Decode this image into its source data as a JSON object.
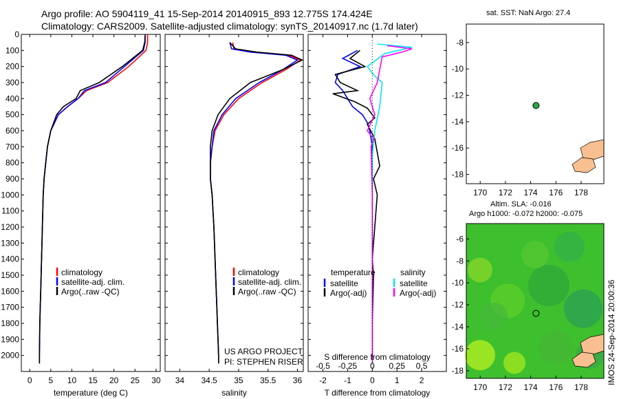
{
  "header": {
    "line1": "Argo profile: AO 5904119_41 15-Sep-2014 20140915_893 12.775S 174.424E",
    "line2": "Climatology: CARS2009. Satellite-adjusted climatology: synTS_20140917.nc (1.7d later)"
  },
  "credit": "IMOS 24-Sep-2014 20:00:36",
  "colors": {
    "climatology": "#ff0000",
    "satellite": "#0000ff",
    "argo": "#000000",
    "salinity_satellite": "#00e5ee",
    "salinity_argo": "#ff00ff",
    "land": "#f8c090",
    "ocean_sla": "#3fbf30"
  },
  "depth_axis": {
    "ylim": [
      2100,
      0
    ],
    "ticks": [
      0,
      100,
      200,
      300,
      400,
      500,
      600,
      700,
      800,
      900,
      1000,
      1100,
      1200,
      1300,
      1400,
      1500,
      1600,
      1700,
      1800,
      1900,
      2000
    ]
  },
  "legend": {
    "items": [
      "climatology",
      "satellite-adj. clim.",
      "Argo(..raw -QC)"
    ],
    "diff_temperature_head": "temperature",
    "diff_salinity_head": "salinity",
    "diff_items": [
      "satellite",
      "Argo(-adj)"
    ]
  },
  "annotations": {
    "us_argo": "US ARGO PROJECT",
    "pi": "PI: STEPHEN RISER"
  },
  "map_titles": {
    "sst": "sat. SST: NaN Argo: 27.4",
    "sla1": "Altim. SLA: -0.016",
    "sla2": "Argo h1000: -0.072 h2000: -0.075"
  },
  "chart_data": [
    {
      "type": "line",
      "name": "temperature",
      "xlabel": "temperature (deg C)",
      "xlim": [
        -2,
        31
      ],
      "ylim": [
        2100,
        0
      ],
      "xticks": [
        0,
        5,
        10,
        15,
        20,
        25,
        30
      ],
      "series": [
        {
          "name": "climatology",
          "color": "#ff0000",
          "x": [
            28.0,
            28.0,
            27.6,
            23.5,
            18.5,
            13.5,
            11.5,
            9.0,
            6.8,
            5.0,
            4.2,
            3.8,
            3.4,
            3.2,
            3.0,
            2.8,
            2.7,
            2.6,
            2.5,
            2.4,
            2.35,
            2.3,
            2.3
          ],
          "y": [
            0,
            50,
            100,
            200,
            300,
            350,
            400,
            450,
            500,
            600,
            700,
            800,
            900,
            1000,
            1200,
            1400,
            1500,
            1600,
            1700,
            1800,
            1900,
            2000,
            2050
          ]
        },
        {
          "name": "satellite-adj. clim.",
          "color": "#0000ff",
          "x": [
            27.4,
            27.4,
            27.0,
            22.5,
            18.0,
            13.0,
            11.5,
            9.0,
            6.8,
            5.0,
            4.2,
            3.8,
            3.4,
            3.2,
            3.0,
            2.8,
            2.7,
            2.6,
            2.5,
            2.4,
            2.35,
            2.3,
            2.3
          ],
          "y": [
            0,
            50,
            100,
            200,
            300,
            350,
            400,
            450,
            500,
            600,
            700,
            800,
            900,
            1000,
            1200,
            1400,
            1500,
            1600,
            1700,
            1800,
            1900,
            2000,
            2050
          ]
        },
        {
          "name": "Argo(..raw -QC)",
          "color": "#000000",
          "x": [
            27.4,
            27.3,
            26.8,
            22.0,
            16.5,
            12.0,
            11.0,
            8.0,
            6.4,
            5.0,
            4.2,
            3.8,
            3.4,
            3.2,
            3.0,
            2.8,
            2.7,
            2.6,
            2.5,
            2.4,
            2.35,
            2.3,
            2.3
          ],
          "y": [
            5,
            50,
            100,
            200,
            300,
            350,
            400,
            450,
            500,
            600,
            700,
            800,
            900,
            1000,
            1200,
            1400,
            1500,
            1600,
            1700,
            1800,
            1900,
            2000,
            2050
          ]
        }
      ]
    },
    {
      "type": "line",
      "name": "salinity",
      "xlabel": "salinity",
      "xlim": [
        33.75,
        36.1
      ],
      "ylim": [
        2100,
        0
      ],
      "xticks": [
        34,
        34.5,
        35,
        35.5,
        36
      ],
      "series": [
        {
          "name": "climatology",
          "color": "#ff0000",
          "x": [
            34.9,
            34.92,
            35.3,
            35.85,
            36.05,
            35.8,
            35.4,
            35.0,
            34.75,
            34.6,
            34.55,
            34.52,
            34.52,
            34.55,
            34.58,
            34.6,
            34.62,
            34.63,
            34.64,
            34.65,
            34.66,
            34.66
          ],
          "y": [
            50,
            90,
            110,
            130,
            160,
            220,
            300,
            400,
            500,
            600,
            700,
            800,
            900,
            1000,
            1200,
            1400,
            1600,
            1700,
            1800,
            1900,
            2000,
            2050
          ]
        },
        {
          "name": "satellite-adj. clim.",
          "color": "#0000ff",
          "x": [
            34.85,
            34.88,
            35.2,
            35.8,
            36.0,
            35.75,
            35.35,
            34.95,
            34.72,
            34.58,
            34.55,
            34.52,
            34.52,
            34.55,
            34.58,
            34.6,
            34.62,
            34.63,
            34.64,
            34.65,
            34.66,
            34.66
          ],
          "y": [
            50,
            90,
            110,
            130,
            160,
            220,
            300,
            400,
            500,
            600,
            700,
            800,
            900,
            1000,
            1200,
            1400,
            1600,
            1700,
            1800,
            1900,
            2000,
            2050
          ]
        },
        {
          "name": "Argo(..raw -QC)",
          "color": "#000000",
          "x": [
            34.85,
            34.95,
            35.3,
            35.9,
            36.08,
            35.75,
            35.2,
            34.85,
            34.65,
            34.55,
            34.52,
            34.52,
            34.52,
            34.55,
            34.58,
            34.6,
            34.62,
            34.63,
            34.64,
            34.65,
            34.66,
            34.66
          ],
          "y": [
            50,
            90,
            110,
            130,
            160,
            220,
            300,
            400,
            500,
            600,
            700,
            800,
            900,
            1000,
            1200,
            1400,
            1600,
            1700,
            1800,
            1900,
            2000,
            2050
          ]
        }
      ]
    },
    {
      "type": "line",
      "name": "difference",
      "xlabel": "T difference from climatology",
      "xlabel_top": "S difference from climatology",
      "xlim": [
        -2.6,
        3.0
      ],
      "ylim": [
        2100,
        0
      ],
      "xticks": [
        -2,
        -1,
        0,
        1,
        2
      ],
      "xticks_top": [
        "-0.5",
        "-0.25",
        "0",
        "0.25",
        "0.5"
      ],
      "series": [
        {
          "name": "temperature satellite",
          "color": "#0000ff",
          "x": [
            -0.6,
            -1.2,
            -0.5,
            -1.4,
            -1.5,
            -1.2,
            -1.0,
            -0.8,
            -0.4,
            -0.2,
            -0.1,
            0,
            0,
            0,
            0,
            0,
            0
          ],
          "y": [
            100,
            150,
            200,
            250,
            300,
            350,
            400,
            450,
            500,
            550,
            600,
            700,
            900,
            1200,
            1500,
            1800,
            2050
          ]
        },
        {
          "name": "temperature Argo(-adj)",
          "color": "#000000",
          "x": [
            -0.5,
            -0.9,
            -0.3,
            -1.5,
            -1.3,
            -0.6,
            -1.6,
            -0.7,
            -0.2,
            0.1,
            -0.2,
            0.1,
            0.3,
            0.05,
            0.2,
            0,
            0.05,
            0,
            0
          ],
          "y": [
            100,
            150,
            200,
            250,
            300,
            350,
            370,
            420,
            460,
            520,
            560,
            650,
            820,
            900,
            1000,
            1400,
            1500,
            1800,
            2050
          ]
        },
        {
          "name": "salinity satellite",
          "color": "#00e5ee",
          "x": [
            0.2,
            1.6,
            0.5,
            -0.2,
            0.1,
            0.4,
            0.3,
            0.1,
            0,
            0,
            0,
            0,
            0,
            0,
            0
          ],
          "y": [
            60,
            80,
            120,
            200,
            260,
            300,
            450,
            600,
            750,
            900,
            1100,
            1400,
            1600,
            1800,
            2050
          ]
        },
        {
          "name": "salinity Argo(-adj)",
          "color": "#ff00ff",
          "x": [
            0.6,
            1.6,
            1.2,
            0.4,
            0.2,
            -0.1,
            0.1,
            -0.2,
            0.05,
            -0.05,
            0,
            0
          ],
          "y": [
            70,
            90,
            110,
            140,
            300,
            400,
            500,
            600,
            650,
            700,
            1000,
            2050
          ]
        }
      ]
    },
    {
      "type": "heatmap",
      "name": "SST map",
      "xticks": [
        170,
        172,
        174,
        176,
        178
      ],
      "yticks": [
        -8,
        -10,
        -12,
        -14,
        -16,
        -18
      ],
      "xlim": [
        168.9,
        179.8
      ],
      "ylim": [
        -18.7,
        -6.6
      ],
      "argo_position": [
        174.424,
        -12.775
      ]
    },
    {
      "type": "heatmap",
      "name": "SLA map",
      "xticks": [
        170,
        172,
        174,
        176,
        178
      ],
      "yticks": [
        -6,
        -8,
        -10,
        -12,
        -14,
        -16,
        -18
      ],
      "xlim": [
        168.9,
        179.8
      ],
      "ylim": [
        -18.7,
        -4.6
      ],
      "argo_position": [
        174.424,
        -12.775
      ]
    }
  ]
}
